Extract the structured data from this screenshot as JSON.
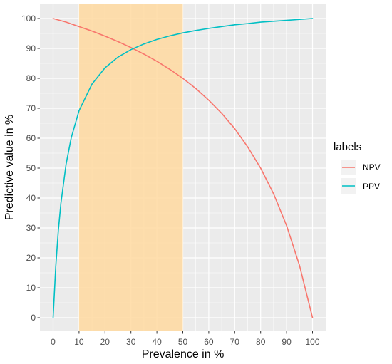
{
  "chart_data": {
    "type": "line",
    "xlabel": "Prevalence in %",
    "ylabel": "Predictive value in %",
    "xlim": [
      0,
      100
    ],
    "ylim": [
      0,
      100
    ],
    "x_ticks": [
      "0",
      "10",
      "20",
      "30",
      "40",
      "50",
      "60",
      "70",
      "80",
      "90",
      "100"
    ],
    "y_ticks": [
      "0",
      "10",
      "20",
      "30",
      "40",
      "50",
      "60",
      "70",
      "80",
      "90",
      "100"
    ],
    "grid": true,
    "highlight_band": {
      "x_from": 10,
      "x_to": 50,
      "color": "#FFD9A0"
    },
    "legend": {
      "title": "labels",
      "position": "right",
      "entries": [
        "NPV",
        "PPV"
      ]
    },
    "series": [
      {
        "name": "NPV",
        "color": "#F8766D",
        "x": [
          0,
          5,
          10,
          15,
          20,
          25,
          30,
          35,
          40,
          45,
          50,
          55,
          60,
          65,
          70,
          75,
          80,
          85,
          90,
          95,
          100
        ],
        "y": [
          100,
          98.8,
          97.3,
          95.8,
          94.1,
          92.3,
          90.3,
          88.1,
          85.7,
          83.0,
          80.0,
          76.6,
          72.7,
          68.3,
          63.2,
          57.1,
          50.0,
          41.4,
          30.8,
          17.4,
          0
        ]
      },
      {
        "name": "PPV",
        "color": "#00BFC4",
        "x": [
          0,
          1,
          2,
          3,
          5,
          7,
          10,
          15,
          20,
          25,
          30,
          35,
          40,
          45,
          50,
          55,
          60,
          65,
          70,
          75,
          80,
          85,
          90,
          95,
          100
        ],
        "y": [
          0,
          16.8,
          29.0,
          38.2,
          51.3,
          60.2,
          69.2,
          78.1,
          83.5,
          87.1,
          89.6,
          91.5,
          93.0,
          94.2,
          95.2,
          96.0,
          96.7,
          97.3,
          97.9,
          98.3,
          98.8,
          99.1,
          99.4,
          99.7,
          100
        ]
      }
    ]
  }
}
